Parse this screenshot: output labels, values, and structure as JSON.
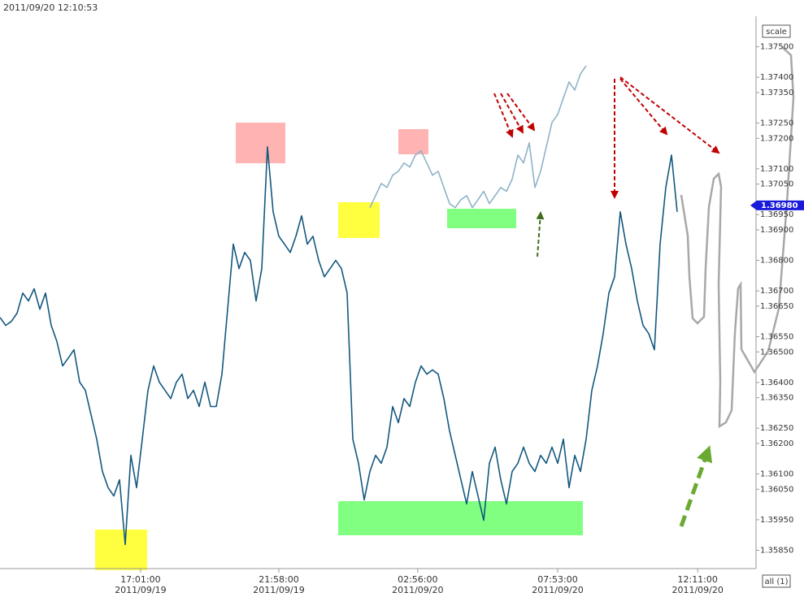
{
  "chart_data": {
    "type": "line",
    "title": "2011/09/20 12:10:53",
    "scale_button": "scale",
    "all_button": "all (1)",
    "current_price": {
      "value": 1.3698,
      "label": "1.36980"
    },
    "xlim": [
      0,
      133
    ],
    "ylim": [
      1.3579,
      1.376
    ],
    "xticks": [
      {
        "value": 24.7,
        "label": "17:01:00",
        "date": "2011/09/19"
      },
      {
        "value": 49,
        "label": "21:58:00",
        "date": "2011/09/19"
      },
      {
        "value": 73.4,
        "label": "02:56:00",
        "date": "2011/09/20"
      },
      {
        "value": 98,
        "label": "07:53:00",
        "date": "2011/09/20"
      },
      {
        "value": 122.6,
        "label": "12:11:00",
        "date": "2011/09/20"
      }
    ],
    "yticks": [
      {
        "value": 1.375,
        "label": "1.37500"
      },
      {
        "value": 1.374,
        "label": "1.37400"
      },
      {
        "value": 1.3735,
        "label": "1.37350"
      },
      {
        "value": 1.3725,
        "label": "1.37250"
      },
      {
        "value": 1.372,
        "label": "1.37200"
      },
      {
        "value": 1.371,
        "label": "1.37100"
      },
      {
        "value": 1.3705,
        "label": "1.37050"
      },
      {
        "value": 1.3695,
        "label": "1.36950"
      },
      {
        "value": 1.369,
        "label": "1.36900"
      },
      {
        "value": 1.368,
        "label": "1.36800"
      },
      {
        "value": 1.367,
        "label": "1.36700"
      },
      {
        "value": 1.3665,
        "label": "1.36650"
      },
      {
        "value": 1.3655,
        "label": "1.36550"
      },
      {
        "value": 1.365,
        "label": "1.36500"
      },
      {
        "value": 1.364,
        "label": "1.36400"
      },
      {
        "value": 1.3635,
        "label": "1.36350"
      },
      {
        "value": 1.3625,
        "label": "1.36250"
      },
      {
        "value": 1.362,
        "label": "1.36200"
      },
      {
        "value": 1.361,
        "label": "1.36100"
      },
      {
        "value": 1.3605,
        "label": "1.36050"
      },
      {
        "value": 1.3595,
        "label": "1.35950"
      },
      {
        "value": 1.3585,
        "label": "1.35850"
      }
    ],
    "series": [
      {
        "color": "#14587e",
        "values": [
          1.36613,
          1.36587,
          1.366,
          1.36627,
          1.36693,
          1.36667,
          1.36707,
          1.3664,
          1.36693,
          1.36587,
          1.36534,
          1.36454,
          1.3648,
          1.36507,
          1.36401,
          1.36374,
          1.36294,
          1.36214,
          1.36108,
          1.36055,
          1.36028,
          1.36081,
          1.35869,
          1.36161,
          1.36055,
          1.36214,
          1.36374,
          1.36454,
          1.36401,
          1.36374,
          1.36347,
          1.36401,
          1.36427,
          1.36347,
          1.36374,
          1.36321,
          1.36401,
          1.36321,
          1.36321,
          1.36427,
          1.3664,
          1.36853,
          1.36773,
          1.36826,
          1.368,
          1.36667,
          1.36773,
          1.37172,
          1.36959,
          1.36879,
          1.36853,
          1.36826,
          1.36879,
          1.36946,
          1.36853,
          1.36879,
          1.368,
          1.36746,
          1.36773,
          1.368,
          1.36773,
          1.36693,
          1.36214,
          1.36135,
          1.36015,
          1.36108,
          1.36161,
          1.36135,
          1.36188,
          1.36321,
          1.36268,
          1.36347,
          1.36321,
          1.36401,
          1.36454,
          1.36427,
          1.36441,
          1.36427,
          1.36347,
          1.36241,
          1.36161,
          1.36081,
          1.36002,
          1.36108,
          1.36028,
          1.35948,
          1.36135,
          1.36188,
          1.36081,
          1.36002,
          1.36108,
          1.36135,
          1.36188,
          1.36135,
          1.36108,
          1.36161,
          1.36135,
          1.36188,
          1.36135,
          1.36214,
          1.36055,
          1.36161,
          1.36108,
          1.36214,
          1.36374,
          1.36454,
          1.3656,
          1.36693,
          1.36746,
          1.36959,
          1.36853,
          1.36773,
          1.36667,
          1.36587,
          1.3656,
          1.36507,
          1.36853,
          1.37039,
          1.37145,
          1.36959
        ]
      },
      {
        "color": "#8fb3c8",
        "values": [
          null,
          null,
          null,
          null,
          null,
          null,
          null,
          null,
          null,
          null,
          null,
          null,
          null,
          null,
          null,
          null,
          null,
          null,
          null,
          null,
          null,
          null,
          null,
          null,
          null,
          null,
          null,
          null,
          null,
          null,
          null,
          null,
          null,
          null,
          null,
          null,
          null,
          null,
          null,
          null,
          null,
          null,
          null,
          null,
          null,
          null,
          null,
          null,
          null,
          null,
          null,
          null,
          null,
          null,
          null,
          null,
          null,
          null,
          null,
          null,
          null,
          null,
          null,
          null,
          null,
          1.36973,
          1.37012,
          1.37052,
          1.37039,
          1.37079,
          1.37092,
          1.37119,
          1.37106,
          1.37145,
          1.37159,
          1.37119,
          1.37079,
          1.37092,
          1.37039,
          1.36986,
          1.36973,
          1.36999,
          1.37012,
          1.36973,
          1.36999,
          1.37026,
          1.36986,
          1.37012,
          1.37039,
          1.37026,
          1.37066,
          1.37145,
          1.37119,
          1.37185,
          1.37039,
          1.37092,
          1.37172,
          1.37252,
          1.37278,
          1.37332,
          1.37385,
          1.37358,
          1.37411,
          1.37438,
          null,
          null,
          null,
          null,
          null,
          null,
          null,
          null,
          null,
          null,
          null,
          null,
          null,
          null,
          null,
          null
        ]
      }
    ]
  }
}
